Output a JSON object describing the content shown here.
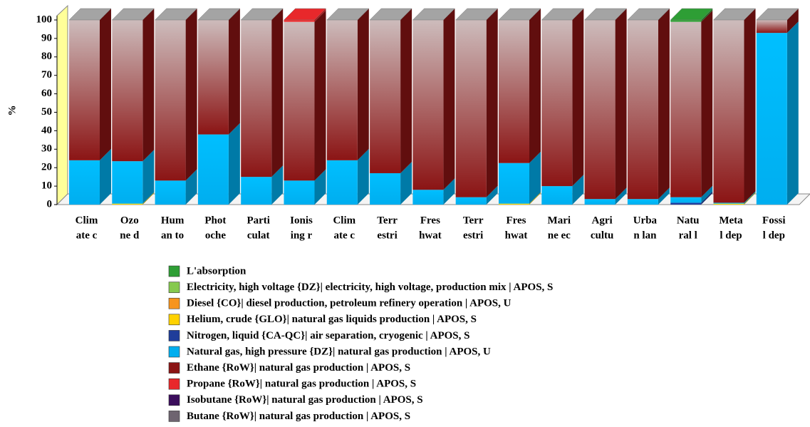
{
  "chart_data": {
    "type": "bar",
    "stacked": true,
    "ylabel": "%",
    "ylim": [
      0,
      100
    ],
    "yticks": [
      0,
      10,
      20,
      30,
      40,
      50,
      60,
      70,
      80,
      90,
      100
    ],
    "categories": [
      [
        "Clim",
        "ate c"
      ],
      [
        "Ozo",
        "ne d"
      ],
      [
        "Hum",
        "an to"
      ],
      [
        "Phot",
        "oche"
      ],
      [
        "Parti",
        "culat"
      ],
      [
        "Ionis",
        "ing r"
      ],
      [
        "Clim",
        "ate c"
      ],
      [
        "Terr",
        "estri"
      ],
      [
        "Fres",
        "hwat"
      ],
      [
        "Terr",
        "estri"
      ],
      [
        "Fres",
        "hwat"
      ],
      [
        "Mari",
        "ne ec"
      ],
      [
        "Agri",
        "cultu"
      ],
      [
        "Urba",
        "n lan"
      ],
      [
        "Natu",
        "ral l"
      ],
      [
        "Meta",
        "l dep"
      ],
      [
        "Fossi",
        "l dep"
      ]
    ],
    "series": [
      {
        "name": "L'absorption",
        "color": "#2e9e35",
        "values": [
          0,
          0,
          0,
          0,
          0,
          0,
          0,
          0,
          0,
          0,
          0,
          0,
          0,
          0,
          1,
          0,
          0
        ]
      },
      {
        "name": "Electricity, high voltage {DZ}| electricity, high voltage, production mix | APOS, S",
        "color": "#86c94f",
        "values": [
          0,
          0,
          0,
          0,
          0,
          0,
          0,
          0,
          0,
          0,
          0,
          0,
          0,
          0,
          0,
          0,
          0
        ]
      },
      {
        "name": "Diesel {CO}| diesel production, petroleum refinery operation | APOS, U",
        "color": "#f7941d",
        "values": [
          0,
          0,
          0,
          0,
          0,
          0,
          0,
          0,
          0,
          0,
          0,
          0,
          0,
          0,
          0,
          0,
          0
        ]
      },
      {
        "name": "Helium, crude {GLO}| natural gas liquids production | APOS, S",
        "color": "#ffd200",
        "values": [
          0,
          0.5,
          0,
          0,
          0,
          0,
          0,
          0,
          0,
          0,
          0.5,
          0,
          0,
          0,
          0,
          0.5,
          0
        ]
      },
      {
        "name": "Nitrogen, liquid {CA-QC}| air separation, cryogenic | APOS, S",
        "color": "#1f3d9a",
        "values": [
          0,
          0,
          0,
          0,
          0,
          0,
          0,
          0,
          0,
          0,
          0,
          0,
          0,
          0,
          1,
          0,
          0
        ]
      },
      {
        "name": "Natural gas, high pressure {DZ}| natural gas production | APOS, U",
        "color": "#00aeef",
        "values": [
          24,
          23,
          13,
          38,
          15,
          13,
          24,
          17,
          8,
          4,
          22,
          10,
          3,
          3,
          3,
          0.5,
          93
        ]
      },
      {
        "name": "Ethane {RoW}| natural gas production | APOS, S",
        "color": "#8b1414",
        "values": [
          76,
          76.5,
          87,
          62,
          85,
          86,
          76,
          83,
          92,
          96,
          77.5,
          90,
          97,
          97,
          95,
          99,
          7
        ]
      },
      {
        "name": "Propane {RoW}| natural gas production | APOS, S",
        "color": "#e8282b",
        "values": [
          0,
          0,
          0,
          0,
          0,
          1,
          0,
          0,
          0,
          0,
          0,
          0,
          0,
          0,
          0,
          0,
          0
        ]
      },
      {
        "name": "Isobutane {RoW}| natural gas production | APOS, S",
        "color": "#3b0d5c",
        "values": [
          0,
          0,
          0,
          0,
          0,
          0,
          0,
          0,
          0,
          0,
          0,
          0,
          0,
          0,
          0,
          0,
          0
        ]
      },
      {
        "name": "Butane {RoW}| natural gas production | APOS, S",
        "color": "#6e6470",
        "values": [
          0,
          0,
          0,
          0,
          0,
          0,
          0,
          0,
          0,
          0,
          0,
          0,
          0,
          0,
          0,
          0,
          0
        ]
      }
    ]
  }
}
